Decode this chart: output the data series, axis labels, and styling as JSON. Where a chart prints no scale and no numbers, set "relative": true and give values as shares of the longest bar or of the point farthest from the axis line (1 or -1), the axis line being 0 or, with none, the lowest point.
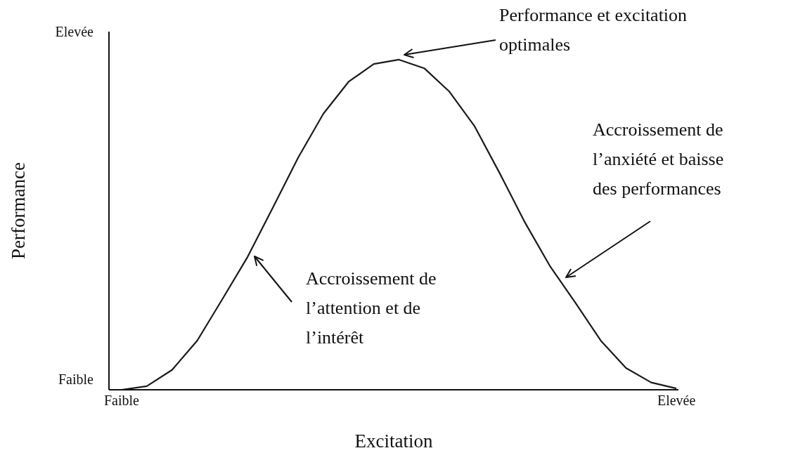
{
  "chart_data": {
    "type": "line",
    "relative": true,
    "xlabel": "Excitation",
    "ylabel": "Performance",
    "categories": [
      "Faible",
      null,
      null,
      null,
      null,
      null,
      null,
      null,
      null,
      null,
      null,
      null,
      null,
      null,
      null,
      null,
      null,
      null,
      null,
      null,
      null,
      null,
      "Elevée"
    ],
    "series": [
      {
        "color": "#1a1a1a",
        "values": [
          0,
          0.011,
          0.06,
          0.149,
          0.275,
          0.403,
          0.552,
          0.703,
          0.836,
          0.933,
          0.987,
          1,
          0.974,
          0.903,
          0.798,
          0.655,
          0.506,
          0.373,
          0.263,
          0.149,
          0.066,
          0.022,
          0.004
        ]
      }
    ],
    "annotations": [
      "Performance et excitation\noptimales",
      "Accroissement de\nl’attention et de\nl’intérêt",
      "Accroissement de\nl’anxiété et baisse\ndes performances",
      "Elevée",
      "Faible"
    ],
    "grid": false,
    "legend": false,
    "marker": "none",
    "line_style": "solid"
  }
}
